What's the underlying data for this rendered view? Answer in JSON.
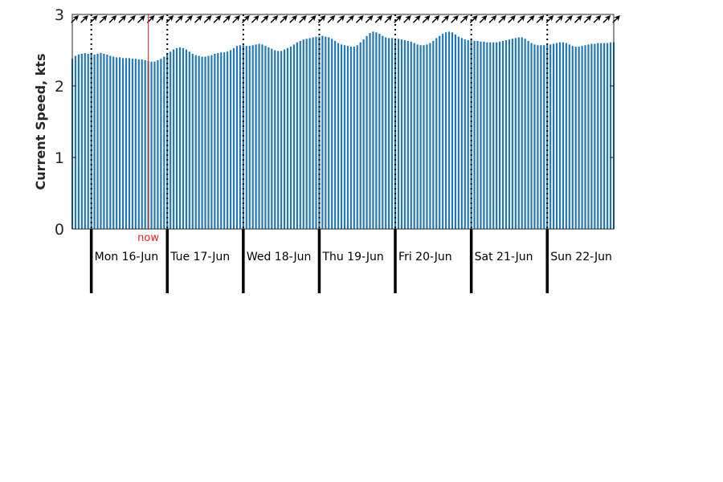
{
  "chart_data": {
    "type": "bar",
    "ylabel": "Current Speed, kts",
    "ylim": [
      0,
      3
    ],
    "yticks": [
      0,
      1,
      2,
      3
    ],
    "bar_color": "#1f77b4",
    "now_color": "#e8231f",
    "now_label": "now",
    "now_time": "Mon 16-Jun 18:00",
    "day_labels": [
      "Mon 16-Jun",
      "Tue 17-Jun",
      "Wed 18-Jun",
      "Thu 19-Jun",
      "Fri 20-Jun",
      "Sat 21-Jun",
      "Sun 22-Jun"
    ],
    "start_time": "Sun 15-Jun 18:00",
    "step_hours": 1,
    "direction_icon": "arrow-northeast-icon",
    "values": [
      2.38,
      2.42,
      2.44,
      2.45,
      2.46,
      2.45,
      2.44,
      2.44,
      2.45,
      2.46,
      2.45,
      2.44,
      2.42,
      2.41,
      2.4,
      2.4,
      2.39,
      2.39,
      2.39,
      2.38,
      2.38,
      2.37,
      2.37,
      2.36,
      2.35,
      2.34,
      2.34,
      2.36,
      2.38,
      2.41,
      2.45,
      2.48,
      2.51,
      2.53,
      2.54,
      2.53,
      2.51,
      2.48,
      2.45,
      2.43,
      2.42,
      2.41,
      2.41,
      2.42,
      2.43,
      2.45,
      2.46,
      2.47,
      2.47,
      2.48,
      2.5,
      2.53,
      2.56,
      2.57,
      2.57,
      2.56,
      2.56,
      2.57,
      2.58,
      2.59,
      2.58,
      2.56,
      2.54,
      2.52,
      2.5,
      2.49,
      2.49,
      2.51,
      2.53,
      2.55,
      2.58,
      2.61,
      2.63,
      2.65,
      2.66,
      2.67,
      2.68,
      2.69,
      2.69,
      2.7,
      2.69,
      2.68,
      2.66,
      2.63,
      2.6,
      2.58,
      2.57,
      2.56,
      2.55,
      2.55,
      2.57,
      2.61,
      2.65,
      2.7,
      2.74,
      2.76,
      2.75,
      2.73,
      2.7,
      2.68,
      2.67,
      2.67,
      2.66,
      2.66,
      2.65,
      2.64,
      2.63,
      2.62,
      2.6,
      2.58,
      2.57,
      2.57,
      2.58,
      2.6,
      2.63,
      2.67,
      2.7,
      2.73,
      2.75,
      2.76,
      2.75,
      2.72,
      2.69,
      2.67,
      2.65,
      2.64,
      2.64,
      2.63,
      2.63,
      2.62,
      2.62,
      2.61,
      2.61,
      2.61,
      2.61,
      2.62,
      2.63,
      2.64,
      2.65,
      2.66,
      2.67,
      2.68,
      2.68,
      2.66,
      2.63,
      2.6,
      2.58,
      2.57,
      2.57,
      2.57,
      2.58,
      2.58,
      2.59,
      2.6,
      2.61,
      2.61,
      2.6,
      2.58,
      2.56,
      2.55,
      2.55,
      2.56,
      2.57,
      2.58,
      2.59,
      2.59,
      2.6,
      2.6,
      2.6,
      2.6,
      2.61,
      2.61
    ]
  }
}
